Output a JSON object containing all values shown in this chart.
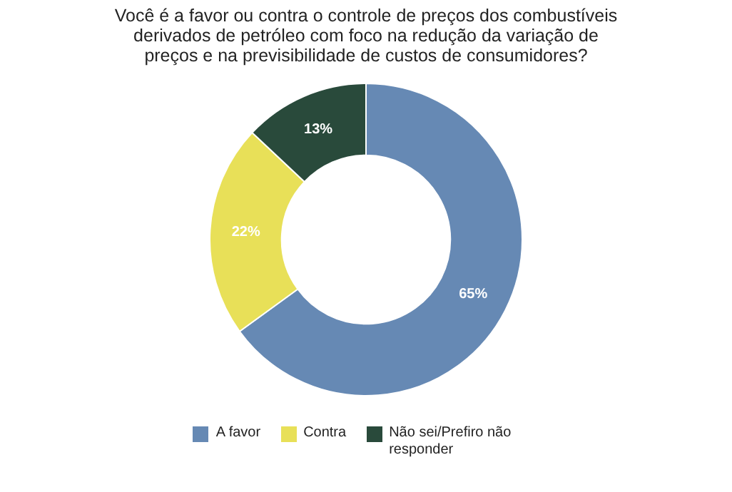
{
  "chart_data": {
    "type": "donut",
    "title": "Você é a favor ou contra o controle de preços dos combustíveis derivados de petróleo com foco na redução da variação de preços e na previsibilidade de custos de consumidores?",
    "categories": [
      "A favor",
      "Contra",
      "Não sei/Prefiro não responder"
    ],
    "values": [
      65,
      22,
      13
    ],
    "value_labels": [
      "65%",
      "22%",
      "13%"
    ],
    "colors": [
      "#6689b4",
      "#e8e058",
      "#294a3b"
    ],
    "legend": "bottom"
  }
}
